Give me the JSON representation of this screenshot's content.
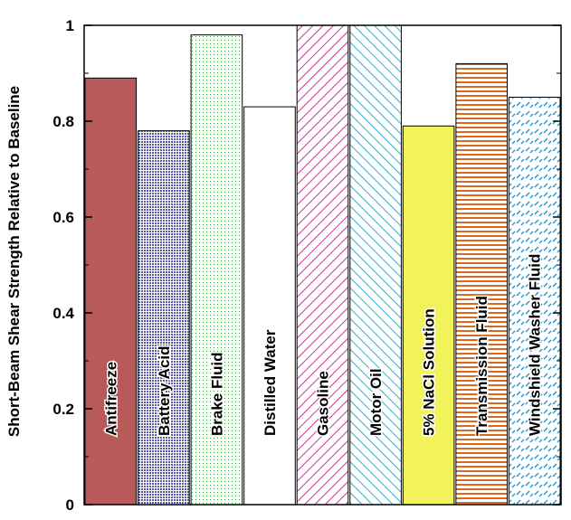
{
  "chart_data": {
    "type": "bar",
    "title": "",
    "xlabel": "",
    "ylabel": "Short-Beam Shear Strength Relative to Baseline",
    "ylim": [
      0,
      1
    ],
    "yticks": [
      0,
      0.2,
      0.4,
      0.6,
      0.8,
      1
    ],
    "ytick_labels": [
      "0",
      "0.2",
      "0.4",
      "0.6",
      "0.8",
      "1"
    ],
    "grid": false,
    "legend": "none",
    "categories": [
      "Antifreeze",
      "Battery Acid",
      "Brake Fluid",
      "Distilled Water",
      "Gasoline",
      "Motor Oil",
      "5% NaCl Solution",
      "Transmission Fluid",
      "Windshield Washer Fluid"
    ],
    "values": [
      0.89,
      0.78,
      0.98,
      0.83,
      1.0,
      1.0,
      0.79,
      0.92,
      0.85
    ],
    "bar_styles": [
      {
        "fill": "#b85a5a",
        "pattern": "solid"
      },
      {
        "fill": "#5a5aa8",
        "pattern": "dots-dense"
      },
      {
        "fill": "#3a9a3a",
        "pattern": "dots-sparse"
      },
      {
        "fill": "#ffffff",
        "pattern": "none"
      },
      {
        "fill": "#d0309a",
        "pattern": "diag-back"
      },
      {
        "fill": "#30b0d0",
        "pattern": "diag-fwd"
      },
      {
        "fill": "#f2f25a",
        "pattern": "solid"
      },
      {
        "fill": "#d86a20",
        "pattern": "horiz"
      },
      {
        "fill": "#2a90c8",
        "pattern": "dash-mix"
      }
    ]
  }
}
